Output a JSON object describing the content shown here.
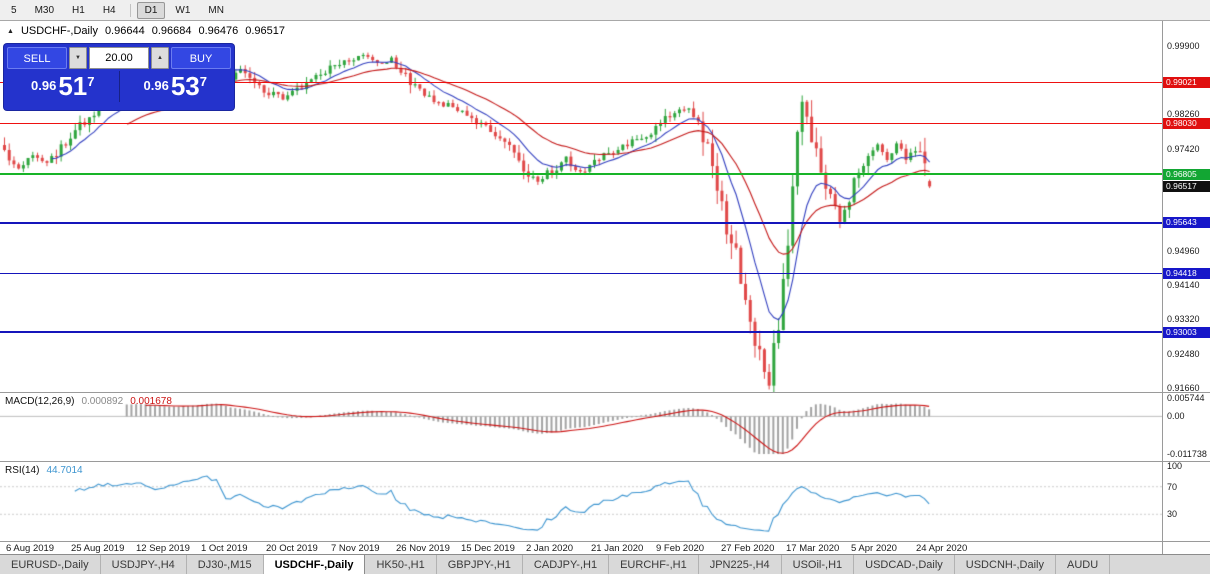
{
  "icons": {
    "collapse": "▲",
    "volume_down": "▼",
    "volume_up": "▲"
  },
  "toolbar": {
    "timeframes": [
      "5",
      "M30",
      "H1",
      "H4",
      "D1",
      "W1",
      "MN"
    ],
    "active": "D1",
    "separator_after": "H4"
  },
  "chart": {
    "header": {
      "symbol_label": "USDCHF-,Daily",
      "open": "0.96644",
      "high": "0.96684",
      "low": "0.96476",
      "close": "0.96517"
    },
    "trade_panel": {
      "sell_label": "SELL",
      "buy_label": "BUY",
      "volume": "20.00",
      "sell_price": {
        "prefix": "0.96",
        "big": "51",
        "sup": "7"
      },
      "buy_price": {
        "prefix": "0.96",
        "big": "53",
        "sup": "7"
      }
    },
    "price_axis": {
      "ticks": [
        "0.99900",
        "0.98260",
        "0.97420",
        "0.94960",
        "0.94140",
        "0.93320",
        "0.92480",
        "0.91660"
      ],
      "badges": [
        {
          "text": "0.99021",
          "bg": "#e00f0f"
        },
        {
          "text": "0.98030",
          "bg": "#e00f0f"
        },
        {
          "text": "0.96805",
          "bg": "#12a633"
        },
        {
          "text": "0.96517",
          "bg": "#101010"
        },
        {
          "text": "0.95643",
          "bg": "#1717c9"
        },
        {
          "text": "0.94418",
          "bg": "#1717c9"
        },
        {
          "text": "0.93003",
          "bg": "#1717c9"
        }
      ]
    },
    "hlines": [
      {
        "value": 0.99021,
        "color": "#ee1111",
        "thickness": 1
      },
      {
        "value": 0.9803,
        "color": "#ee1111",
        "thickness": 1
      },
      {
        "value": 0.96805,
        "color": "#18b428",
        "thickness": 2
      },
      {
        "value": 0.95643,
        "color": "#1515bb",
        "thickness": 2
      },
      {
        "value": 0.94418,
        "color": "#1515bb",
        "thickness": 1
      },
      {
        "value": 0.93003,
        "color": "#1515bb",
        "thickness": 2
      }
    ],
    "date_axis": [
      "6 Aug 2019",
      "25 Aug 2019",
      "12 Sep 2019",
      "1 Oct 2019",
      "20 Oct 2019",
      "7 Nov 2019",
      "26 Nov 2019",
      "15 Dec 2019",
      "2 Jan 2020",
      "21 Jan 2020",
      "9 Feb 2020",
      "27 Feb 2020",
      "17 Mar 2020",
      "5 Apr 2020",
      "24 Apr 2020"
    ]
  },
  "macd": {
    "label": "MACD(12,26,9)",
    "value_main": "0.000892",
    "value_signal": "0.001678",
    "axis_labels": {
      "max": "0.005744",
      "zero": "0.00",
      "min": "-0.011738"
    },
    "range": {
      "max": 0.005744,
      "min": -0.011738
    },
    "params": {
      "fast": 12,
      "slow": 26,
      "signal": 9
    },
    "histogram_color": "#a3a3a3",
    "signal_color": "#cc1414"
  },
  "rsi": {
    "label": "RSI(14)",
    "value": "44.7014",
    "period": 14,
    "axis_labels": [
      "100",
      "70",
      "30"
    ],
    "levels": [
      70,
      30
    ],
    "line_color": "#3d95d0",
    "level_color": "#cccccc"
  },
  "tabs": {
    "items": [
      "EURUSD-,Daily",
      "USDJPY-,H4",
      "DJ30-,M15",
      "USDCHF-,Daily",
      "HK50-,H1",
      "GBPJPY-,H1",
      "CADJPY-,H1",
      "EURCHF-,H1",
      "JPN225-,H4",
      "USOil-,H1",
      "USDCAD-,Daily",
      "USDCNH-,Daily",
      "AUDU"
    ],
    "active_index": 3
  },
  "chart_data": {
    "type": "candlestick",
    "symbol": "USDCHF",
    "timeframe": "Daily",
    "bars": 197,
    "date_range": [
      "6 Aug 2019",
      "24 Apr 2020"
    ],
    "last_ohlc": {
      "open": 0.96644,
      "high": 0.96684,
      "low": 0.96476,
      "close": 0.96517
    },
    "price_axis_range": [
      0.9166,
      0.999
    ],
    "horizontal_lines": [
      0.99021,
      0.9803,
      0.96805,
      0.95643,
      0.94418,
      0.93003
    ],
    "price_anchors": [
      [
        0,
        0.9732
      ],
      [
        3,
        0.97
      ],
      [
        6,
        0.9722
      ],
      [
        9,
        0.971
      ],
      [
        13,
        0.9762
      ],
      [
        16,
        0.98
      ],
      [
        22,
        0.9862
      ],
      [
        28,
        0.9888
      ],
      [
        33,
        0.9873
      ],
      [
        36,
        0.9896
      ],
      [
        40,
        0.9942
      ],
      [
        43,
        0.9978
      ],
      [
        45,
        0.9968
      ],
      [
        47,
        0.9906
      ],
      [
        50,
        0.9932
      ],
      [
        55,
        0.988
      ],
      [
        59,
        0.9866
      ],
      [
        63,
        0.9892
      ],
      [
        68,
        0.993
      ],
      [
        72,
        0.995
      ],
      [
        76,
        0.9968
      ],
      [
        79,
        0.9945
      ],
      [
        82,
        0.9958
      ],
      [
        85,
        0.992
      ],
      [
        88,
        0.9878
      ],
      [
        92,
        0.9855
      ],
      [
        96,
        0.9838
      ],
      [
        100,
        0.981
      ],
      [
        104,
        0.978
      ],
      [
        107,
        0.9742
      ],
      [
        110,
        0.97
      ],
      [
        113,
        0.9662
      ],
      [
        116,
        0.969
      ],
      [
        119,
        0.9717
      ],
      [
        121,
        0.9683
      ],
      [
        124,
        0.97
      ],
      [
        127,
        0.9728
      ],
      [
        131,
        0.9748
      ],
      [
        134,
        0.9762
      ],
      [
        137,
        0.9778
      ],
      [
        140,
        0.9812
      ],
      [
        143,
        0.9842
      ],
      [
        146,
        0.9828
      ],
      [
        149,
        0.975
      ],
      [
        151,
        0.9655
      ],
      [
        153,
        0.956
      ],
      [
        155,
        0.948
      ],
      [
        157,
        0.939
      ],
      [
        159,
        0.929
      ],
      [
        161,
        0.9205
      ],
      [
        162,
        0.918
      ],
      [
        164,
        0.932
      ],
      [
        166,
        0.951
      ],
      [
        167,
        0.966
      ],
      [
        168,
        0.98
      ],
      [
        169,
        0.9872
      ],
      [
        171,
        0.978
      ],
      [
        173,
        0.97
      ],
      [
        175,
        0.964
      ],
      [
        177,
        0.9575
      ],
      [
        179,
        0.9612
      ],
      [
        181,
        0.9688
      ],
      [
        183,
        0.9726
      ],
      [
        185,
        0.975
      ],
      [
        187,
        0.9718
      ],
      [
        189,
        0.9755
      ],
      [
        191,
        0.9722
      ],
      [
        193,
        0.9742
      ],
      [
        195,
        0.9705
      ],
      [
        196,
        0.96517
      ]
    ],
    "up_color": "#2fa53e",
    "down_color": "#e04848",
    "ma_fast": {
      "period": 10,
      "color": "#3340c0"
    },
    "ma_slow": {
      "period": 26,
      "color": "#c41818"
    },
    "seed": 11
  }
}
